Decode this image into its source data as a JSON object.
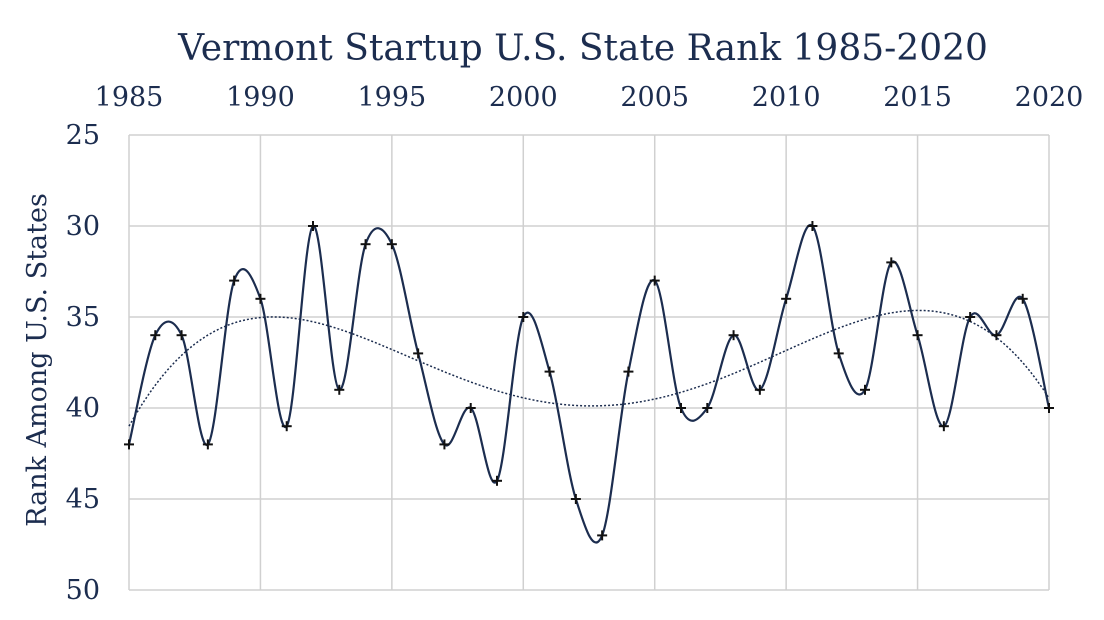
{
  "chart_data": {
    "type": "line",
    "title": "Vermont Startup U.S. State Rank 1985-2020",
    "xlabel": "",
    "ylabel": "Rank Among U.S. States",
    "x_ticks": [
      1985,
      1990,
      1995,
      2000,
      2005,
      2010,
      2015,
      2020
    ],
    "y_ticks": [
      25,
      30,
      35,
      40,
      45,
      50
    ],
    "xlim": [
      1985,
      2020
    ],
    "ylim": [
      25,
      50
    ],
    "y_reversed": true,
    "x_axis_position": "top",
    "grid": true,
    "smooth": true,
    "marker": "plus",
    "trendline": "polynomial",
    "x": [
      1985,
      1986,
      1987,
      1988,
      1989,
      1990,
      1991,
      1992,
      1993,
      1994,
      1995,
      1996,
      1997,
      1998,
      1999,
      2000,
      2001,
      2002,
      2003,
      2004,
      2005,
      2006,
      2007,
      2008,
      2009,
      2010,
      2011,
      2012,
      2013,
      2014,
      2015,
      2016,
      2017,
      2018,
      2019,
      2020
    ],
    "series": [
      {
        "values": [
          42,
          36,
          36,
          42,
          33,
          34,
          41,
          30,
          39,
          31,
          31,
          37,
          42,
          40,
          44,
          35,
          38,
          45,
          47,
          38,
          33,
          40,
          40,
          36,
          39,
          34,
          30,
          37,
          39,
          32,
          36,
          41,
          35,
          36,
          34,
          40
        ]
      }
    ],
    "colors": {
      "line": "#1c2d4f",
      "text": "#1c2d4f",
      "grid": "#d0d0d0"
    }
  }
}
